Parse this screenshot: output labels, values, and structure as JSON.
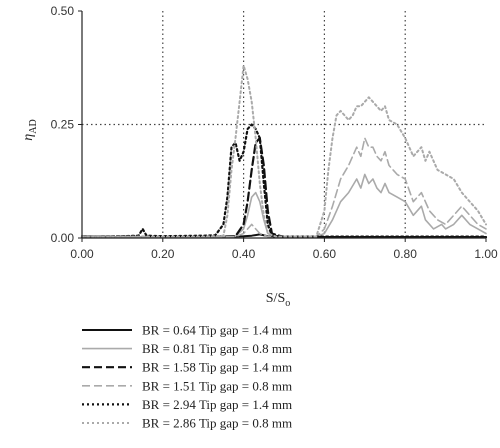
{
  "chart_data": {
    "type": "line",
    "xlabel": "S/S",
    "xlabel_sub": "o",
    "ylabel": "η",
    "ylabel_sub": "AD",
    "xlim": [
      0,
      1
    ],
    "ylim": [
      0,
      0.5
    ],
    "xticks": [
      "0.00",
      "0.20",
      "0.40",
      "0.60",
      "0.80",
      "1.00"
    ],
    "yticks": [
      "0.00",
      "0.25",
      "0.50"
    ],
    "reference_lines": {
      "x": [
        0.2,
        0.4,
        0.6,
        0.8
      ],
      "y": [
        0.25
      ]
    },
    "legend_placement": "bottom",
    "series": [
      {
        "name": "BR = 0.64 Tip gap = 1.4 mm",
        "style": "solid",
        "color": "#111111",
        "width": 2.0,
        "points": [
          [
            0,
            0.004
          ],
          [
            0.1,
            0.002
          ],
          [
            0.2,
            0.002
          ],
          [
            0.3,
            0.002
          ],
          [
            0.36,
            0.003
          ],
          [
            0.4,
            0.004
          ],
          [
            0.42,
            0.005
          ],
          [
            0.44,
            0.008
          ],
          [
            0.46,
            0.004
          ],
          [
            0.5,
            0.002
          ],
          [
            0.6,
            0.002
          ],
          [
            0.8,
            0.002
          ],
          [
            1.0,
            0.002
          ]
        ]
      },
      {
        "name": "BR = 0.81 Tip gap = 0.8 mm",
        "style": "solid",
        "color": "#aaaaaa",
        "width": 1.6,
        "points": [
          [
            0,
            0.003
          ],
          [
            0.3,
            0.002
          ],
          [
            0.38,
            0.004
          ],
          [
            0.4,
            0.02
          ],
          [
            0.41,
            0.05
          ],
          [
            0.42,
            0.09
          ],
          [
            0.43,
            0.1
          ],
          [
            0.44,
            0.08
          ],
          [
            0.45,
            0.04
          ],
          [
            0.46,
            0.01
          ],
          [
            0.48,
            0.003
          ],
          [
            0.58,
            0.003
          ],
          [
            0.6,
            0.01
          ],
          [
            0.62,
            0.04
          ],
          [
            0.64,
            0.08
          ],
          [
            0.66,
            0.1
          ],
          [
            0.68,
            0.13
          ],
          [
            0.69,
            0.11
          ],
          [
            0.7,
            0.14
          ],
          [
            0.71,
            0.12
          ],
          [
            0.72,
            0.13
          ],
          [
            0.73,
            0.11
          ],
          [
            0.74,
            0.1
          ],
          [
            0.75,
            0.12
          ],
          [
            0.76,
            0.1
          ],
          [
            0.78,
            0.09
          ],
          [
            0.8,
            0.08
          ],
          [
            0.82,
            0.05
          ],
          [
            0.84,
            0.07
          ],
          [
            0.85,
            0.04
          ],
          [
            0.87,
            0.02
          ],
          [
            0.89,
            0.03
          ],
          [
            0.9,
            0.02
          ],
          [
            0.92,
            0.03
          ],
          [
            0.94,
            0.05
          ],
          [
            0.96,
            0.03
          ],
          [
            0.98,
            0.02
          ],
          [
            1.0,
            0.01
          ]
        ]
      },
      {
        "name": "BR = 1.58 Tip gap = 1.4 mm",
        "style": "dash",
        "color": "#111111",
        "width": 2.2,
        "points": [
          [
            0,
            0.003
          ],
          [
            0.3,
            0.002
          ],
          [
            0.38,
            0.004
          ],
          [
            0.4,
            0.03
          ],
          [
            0.41,
            0.08
          ],
          [
            0.42,
            0.15
          ],
          [
            0.43,
            0.21
          ],
          [
            0.44,
            0.22
          ],
          [
            0.45,
            0.16
          ],
          [
            0.46,
            0.06
          ],
          [
            0.47,
            0.01
          ],
          [
            0.5,
            0.002
          ],
          [
            1.0,
            0.002
          ]
        ]
      },
      {
        "name": "BR = 1.51 Tip gap = 0.8 mm",
        "style": "dash",
        "color": "#aaaaaa",
        "width": 1.6,
        "points": [
          [
            0,
            0.003
          ],
          [
            0.3,
            0.002
          ],
          [
            0.38,
            0.003
          ],
          [
            0.4,
            0.01
          ],
          [
            0.42,
            0.03
          ],
          [
            0.44,
            0.01
          ],
          [
            0.46,
            0.003
          ],
          [
            0.58,
            0.003
          ],
          [
            0.6,
            0.02
          ],
          [
            0.62,
            0.07
          ],
          [
            0.64,
            0.13
          ],
          [
            0.66,
            0.16
          ],
          [
            0.68,
            0.2
          ],
          [
            0.69,
            0.18
          ],
          [
            0.7,
            0.22
          ],
          [
            0.71,
            0.2
          ],
          [
            0.72,
            0.2
          ],
          [
            0.73,
            0.18
          ],
          [
            0.74,
            0.17
          ],
          [
            0.75,
            0.19
          ],
          [
            0.76,
            0.16
          ],
          [
            0.78,
            0.14
          ],
          [
            0.8,
            0.13
          ],
          [
            0.82,
            0.08
          ],
          [
            0.84,
            0.1
          ],
          [
            0.86,
            0.06
          ],
          [
            0.88,
            0.04
          ],
          [
            0.9,
            0.03
          ],
          [
            0.92,
            0.05
          ],
          [
            0.94,
            0.07
          ],
          [
            0.96,
            0.05
          ],
          [
            0.98,
            0.03
          ],
          [
            1.0,
            0.02
          ]
        ]
      },
      {
        "name": "BR = 2.94 Tip gap = 1.4 mm",
        "style": "dot",
        "color": "#111111",
        "width": 2.2,
        "points": [
          [
            0,
            0.003
          ],
          [
            0.1,
            0.004
          ],
          [
            0.14,
            0.005
          ],
          [
            0.15,
            0.02
          ],
          [
            0.16,
            0.005
          ],
          [
            0.2,
            0.004
          ],
          [
            0.3,
            0.005
          ],
          [
            0.33,
            0.006
          ],
          [
            0.35,
            0.03
          ],
          [
            0.36,
            0.09
          ],
          [
            0.37,
            0.2
          ],
          [
            0.38,
            0.21
          ],
          [
            0.39,
            0.17
          ],
          [
            0.4,
            0.19
          ],
          [
            0.41,
            0.24
          ],
          [
            0.42,
            0.25
          ],
          [
            0.43,
            0.24
          ],
          [
            0.44,
            0.22
          ],
          [
            0.45,
            0.12
          ],
          [
            0.46,
            0.03
          ],
          [
            0.47,
            0.005
          ],
          [
            0.5,
            0.003
          ],
          [
            1.0,
            0.003
          ]
        ]
      },
      {
        "name": "BR = 2.86 Tip gap = 0.8 mm",
        "style": "dot",
        "color": "#aaaaaa",
        "width": 2.0,
        "points": [
          [
            0,
            0.003
          ],
          [
            0.3,
            0.003
          ],
          [
            0.35,
            0.005
          ],
          [
            0.36,
            0.05
          ],
          [
            0.37,
            0.15
          ],
          [
            0.38,
            0.22
          ],
          [
            0.39,
            0.3
          ],
          [
            0.4,
            0.38
          ],
          [
            0.41,
            0.35
          ],
          [
            0.42,
            0.3
          ],
          [
            0.43,
            0.22
          ],
          [
            0.44,
            0.12
          ],
          [
            0.45,
            0.05
          ],
          [
            0.46,
            0.01
          ],
          [
            0.48,
            0.003
          ],
          [
            0.58,
            0.003
          ],
          [
            0.6,
            0.06
          ],
          [
            0.61,
            0.15
          ],
          [
            0.62,
            0.22
          ],
          [
            0.63,
            0.27
          ],
          [
            0.64,
            0.28
          ],
          [
            0.65,
            0.27
          ],
          [
            0.66,
            0.26
          ],
          [
            0.67,
            0.27
          ],
          [
            0.68,
            0.29
          ],
          [
            0.69,
            0.29
          ],
          [
            0.7,
            0.3
          ],
          [
            0.71,
            0.31
          ],
          [
            0.72,
            0.3
          ],
          [
            0.73,
            0.29
          ],
          [
            0.74,
            0.28
          ],
          [
            0.75,
            0.29
          ],
          [
            0.76,
            0.26
          ],
          [
            0.78,
            0.25
          ],
          [
            0.8,
            0.22
          ],
          [
            0.82,
            0.18
          ],
          [
            0.84,
            0.2
          ],
          [
            0.85,
            0.17
          ],
          [
            0.86,
            0.19
          ],
          [
            0.88,
            0.15
          ],
          [
            0.9,
            0.14
          ],
          [
            0.92,
            0.13
          ],
          [
            0.94,
            0.1
          ],
          [
            0.96,
            0.08
          ],
          [
            0.98,
            0.06
          ],
          [
            1.0,
            0.03
          ]
        ]
      }
    ]
  }
}
